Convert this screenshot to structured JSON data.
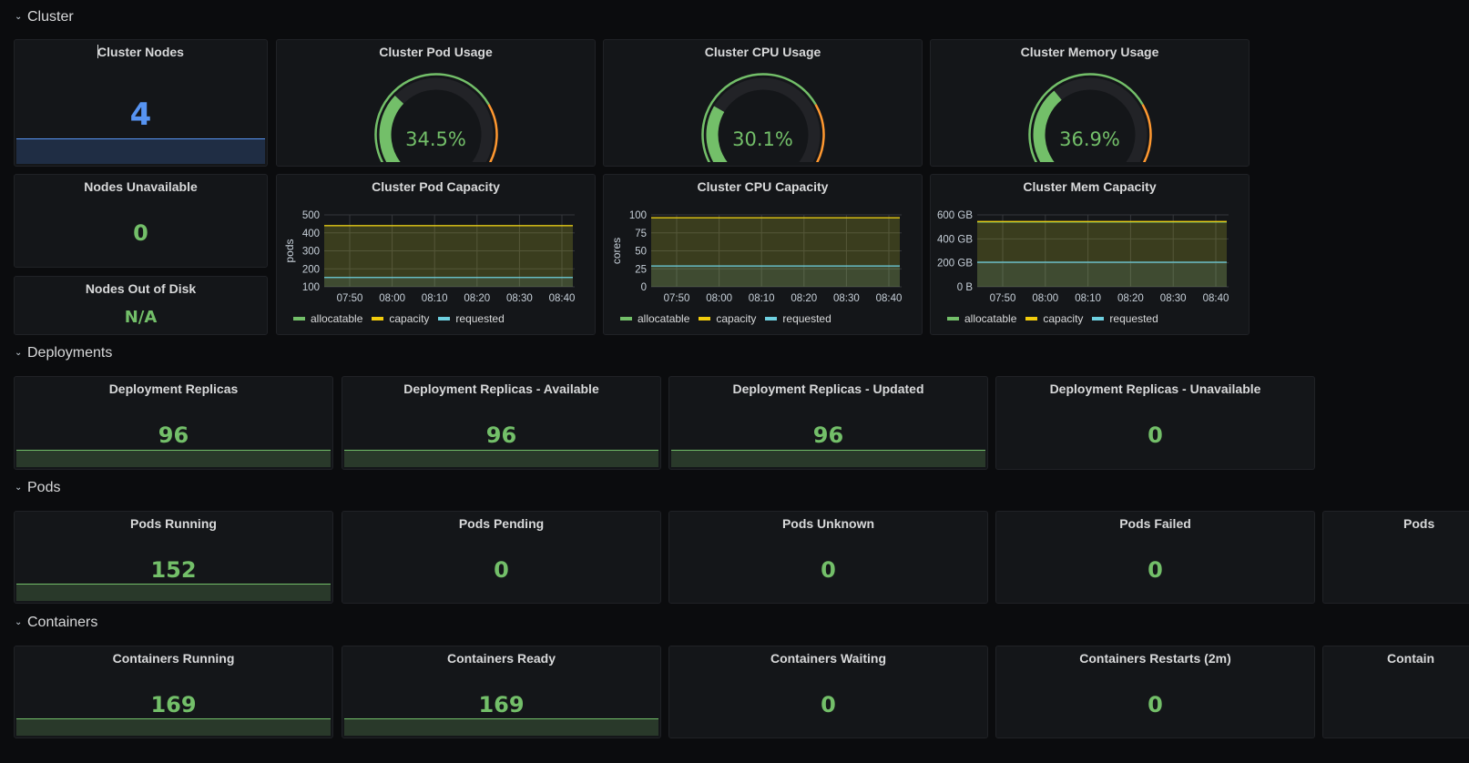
{
  "sections": {
    "cluster": "Cluster",
    "deployments": "Deployments",
    "pods": "Pods",
    "containers": "Containers"
  },
  "icons": {
    "section_toggle": "chevron-down-icon"
  },
  "colors": {
    "green": "#73bf69",
    "blue": "#5794f2",
    "yellow": "#fade2a",
    "orange": "#ff9830",
    "red": "#f2495c",
    "cyan": "#5bd4e8",
    "allocatable": "#73bf69",
    "capacity": "#f2cc0c",
    "requested": "#6ed0e0"
  },
  "cluster": {
    "nodes": {
      "title": "Cluster Nodes",
      "value": "4"
    },
    "nodes_unavailable": {
      "title": "Nodes Unavailable",
      "value": "0"
    },
    "nodes_out_of_disk": {
      "title": "Nodes Out of Disk",
      "value": "N/A"
    },
    "gauges": [
      {
        "title": "Cluster Pod Usage",
        "value": "34.5%",
        "percent": 34.5
      },
      {
        "title": "Cluster CPU Usage",
        "value": "30.1%",
        "percent": 30.1
      },
      {
        "title": "Cluster Memory Usage",
        "value": "36.9%",
        "percent": 36.9
      }
    ]
  },
  "chart_data": [
    {
      "type": "area",
      "title": "Cluster Pod Capacity",
      "ylabel": "pods",
      "xlabel": "",
      "x_ticks": [
        "07:50",
        "08:00",
        "08:10",
        "08:20",
        "08:30",
        "08:40"
      ],
      "y_ticks": [
        "100",
        "200",
        "300",
        "400",
        "500"
      ],
      "y_tick_values": [
        100,
        200,
        300,
        400,
        500
      ],
      "ylim": [
        100,
        500
      ],
      "grid": true,
      "legend_position": "bottom-left",
      "series": [
        {
          "name": "allocatable",
          "value": 440
        },
        {
          "name": "capacity",
          "value": 440
        },
        {
          "name": "requested",
          "value": 152
        }
      ]
    },
    {
      "type": "area",
      "title": "Cluster CPU Capacity",
      "ylabel": "cores",
      "xlabel": "",
      "x_ticks": [
        "07:50",
        "08:00",
        "08:10",
        "08:20",
        "08:30",
        "08:40"
      ],
      "y_ticks": [
        "0",
        "25",
        "50",
        "75",
        "100"
      ],
      "y_tick_values": [
        0,
        25,
        50,
        75,
        100
      ],
      "ylim": [
        0,
        100
      ],
      "grid": true,
      "legend_position": "bottom-left",
      "series": [
        {
          "name": "allocatable",
          "value": 96
        },
        {
          "name": "capacity",
          "value": 96
        },
        {
          "name": "requested",
          "value": 29
        }
      ]
    },
    {
      "type": "area",
      "title": "Cluster Mem Capacity",
      "ylabel": "",
      "xlabel": "",
      "x_ticks": [
        "07:50",
        "08:00",
        "08:10",
        "08:20",
        "08:30",
        "08:40"
      ],
      "y_ticks": [
        "0 B",
        "200 GB",
        "400 GB",
        "600 GB"
      ],
      "y_tick_values": [
        0,
        200,
        400,
        600
      ],
      "ylim": [
        0,
        600
      ],
      "grid": true,
      "legend_position": "bottom-left",
      "series": [
        {
          "name": "allocatable",
          "value": 540
        },
        {
          "name": "capacity",
          "value": 545
        },
        {
          "name": "requested",
          "value": 205
        }
      ]
    }
  ],
  "deployments": [
    {
      "title": "Deployment Replicas",
      "value": "96",
      "spark": true
    },
    {
      "title": "Deployment Replicas - Available",
      "value": "96",
      "spark": true
    },
    {
      "title": "Deployment Replicas - Updated",
      "value": "96",
      "spark": true
    },
    {
      "title": "Deployment Replicas - Unavailable",
      "value": "0",
      "spark": false
    }
  ],
  "pods": [
    {
      "title": "Pods Running",
      "value": "152",
      "spark": true
    },
    {
      "title": "Pods Pending",
      "value": "0",
      "spark": false
    },
    {
      "title": "Pods Unknown",
      "value": "0",
      "spark": false
    },
    {
      "title": "Pods Failed",
      "value": "0",
      "spark": false
    },
    {
      "title": "Pods",
      "value": "",
      "spark": false
    }
  ],
  "containers": [
    {
      "title": "Containers Running",
      "value": "169",
      "spark": true
    },
    {
      "title": "Containers Ready",
      "value": "169",
      "spark": true
    },
    {
      "title": "Containers Waiting",
      "value": "0",
      "spark": false
    },
    {
      "title": "Containers Restarts (2m)",
      "value": "0",
      "spark": false
    },
    {
      "title": "Contain",
      "value": "",
      "spark": false
    }
  ]
}
